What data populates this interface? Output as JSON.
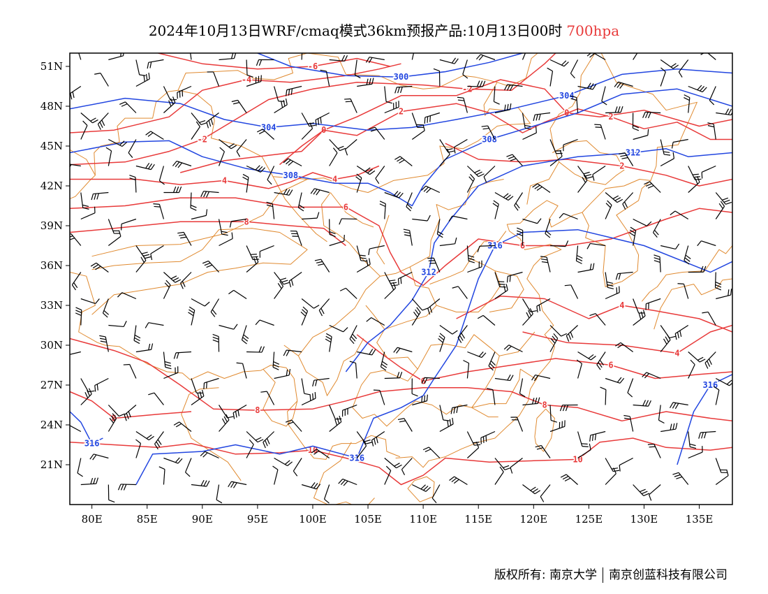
{
  "title": {
    "main": "2024年10月13日WRF/cmaq模式36km预报产品:10月13日00时",
    "level": "700hpa"
  },
  "colors": {
    "temperature": "#e83a3a",
    "height": "#2246e0",
    "border": "#e08a30",
    "wind": "#000000"
  },
  "map": {
    "lon_range": [
      78,
      138
    ],
    "lat_range": [
      18,
      52
    ],
    "lat_ticks": [
      "51N",
      "48N",
      "45N",
      "42N",
      "39N",
      "36N",
      "33N",
      "30N",
      "27N",
      "24N",
      "21N"
    ],
    "lat_values": [
      51,
      48,
      45,
      42,
      39,
      36,
      33,
      30,
      27,
      24,
      21
    ],
    "lon_ticks": [
      "80E",
      "85E",
      "90E",
      "95E",
      "100E",
      "105E",
      "110E",
      "115E",
      "120E",
      "125E",
      "130E",
      "135E"
    ],
    "lon_values": [
      80,
      85,
      90,
      95,
      100,
      105,
      110,
      115,
      120,
      125,
      130,
      135
    ],
    "height_contours": [
      {
        "label": "304",
        "points": [
          [
            78,
            47.8
          ],
          [
            83,
            48.6
          ],
          [
            88,
            48.2
          ],
          [
            92,
            47
          ],
          [
            96,
            46.4
          ],
          [
            100,
            46.7
          ],
          [
            105,
            46.2
          ],
          [
            109,
            46.4
          ],
          [
            113,
            47
          ],
          [
            118,
            47.8
          ],
          [
            123,
            48.8
          ],
          [
            128,
            50.4
          ],
          [
            133,
            50.8
          ],
          [
            138,
            50.5
          ]
        ]
      },
      {
        "label": "300",
        "points": [
          [
            95,
            52
          ],
          [
            98,
            51
          ],
          [
            103,
            50.3
          ],
          [
            108,
            50.2
          ],
          [
            112,
            50.6
          ],
          [
            116,
            51.3
          ],
          [
            119,
            52
          ]
        ]
      },
      {
        "label": "308",
        "points": [
          [
            78,
            44.5
          ],
          [
            83,
            45.3
          ],
          [
            87,
            45.4
          ],
          [
            90,
            44.2
          ],
          [
            94,
            43.3
          ],
          [
            98,
            42.8
          ],
          [
            102,
            42.2
          ],
          [
            105,
            42.2
          ],
          [
            107,
            41.5
          ],
          [
            109,
            40.5
          ],
          [
            110,
            42
          ],
          [
            112,
            44
          ],
          [
            116,
            45.5
          ],
          [
            120,
            46.5
          ],
          [
            124,
            47.5
          ],
          [
            128,
            48.9
          ],
          [
            133,
            49.3
          ],
          [
            138,
            48
          ]
        ]
      },
      {
        "label": "312",
        "points": [
          [
            103,
            28
          ],
          [
            105,
            30.2
          ],
          [
            107,
            31.5
          ],
          [
            109,
            33.4
          ],
          [
            110.5,
            35.5
          ],
          [
            111,
            37.7
          ],
          [
            112.5,
            39.5
          ],
          [
            115,
            42
          ],
          [
            119,
            43.5
          ],
          [
            124,
            44.2
          ],
          [
            129,
            44.5
          ],
          [
            132,
            44.8
          ],
          [
            134,
            44.2
          ],
          [
            138,
            44.5
          ]
        ]
      },
      {
        "label": "316",
        "points": [
          [
            84,
            19.5
          ],
          [
            85.5,
            21.8
          ],
          [
            90,
            22
          ],
          [
            93,
            22.5
          ],
          [
            97,
            21.8
          ],
          [
            100,
            22.4
          ],
          [
            104,
            21.5
          ],
          [
            105.5,
            24.5
          ],
          [
            108,
            25.3
          ],
          [
            110,
            26.2
          ],
          [
            111,
            27.5
          ],
          [
            113,
            30
          ],
          [
            114,
            32.5
          ],
          [
            115,
            35
          ],
          [
            116.5,
            37.5
          ],
          [
            119,
            38.5
          ],
          [
            124,
            38.7
          ],
          [
            130,
            37.5
          ],
          [
            136,
            35.5
          ],
          [
            138,
            36.3
          ]
        ]
      },
      {
        "label": "316",
        "points": [
          [
            133,
            21
          ],
          [
            134.5,
            25
          ],
          [
            136,
            27
          ],
          [
            138,
            27.8
          ]
        ]
      },
      {
        "label": "316",
        "points": [
          [
            78,
            25
          ],
          [
            79,
            24.2
          ],
          [
            80,
            22.6
          ],
          [
            81,
            23
          ]
        ]
      }
    ],
    "temp_contours": [
      {
        "label": "-6",
        "points": [
          [
            86,
            52
          ],
          [
            90,
            51.2
          ],
          [
            95,
            50.8
          ],
          [
            100,
            51
          ],
          [
            104,
            51.6
          ],
          [
            107,
            51
          ]
        ]
      },
      {
        "label": "-4",
        "points": [
          [
            78,
            46
          ],
          [
            82,
            46.2
          ],
          [
            87,
            47.2
          ],
          [
            90,
            49.2
          ],
          [
            94,
            50
          ],
          [
            98,
            49.8
          ],
          [
            103,
            50.3
          ],
          [
            106,
            50.8
          ],
          [
            108,
            51.2
          ]
        ]
      },
      {
        "label": "-2",
        "points": [
          [
            78,
            43.6
          ],
          [
            83,
            43.8
          ],
          [
            87,
            44.6
          ],
          [
            90,
            45.5
          ],
          [
            93,
            47
          ],
          [
            96,
            48.5
          ],
          [
            100,
            49.3
          ],
          [
            104,
            49.8
          ],
          [
            110,
            49.6
          ],
          [
            114,
            49.3
          ],
          [
            118,
            49.2
          ],
          [
            121,
            51.2
          ],
          [
            122,
            52
          ]
        ]
      },
      {
        "label": "0",
        "points": [
          [
            88,
            43
          ],
          [
            92,
            43.9
          ],
          [
            96,
            44.3
          ],
          [
            99,
            44.6
          ],
          [
            101,
            46.2
          ],
          [
            104,
            47.2
          ],
          [
            108,
            48.8
          ],
          [
            113,
            48.8
          ],
          [
            117,
            50
          ],
          [
            121,
            49.3
          ],
          [
            123,
            47.5
          ],
          [
            126,
            47.2
          ],
          [
            130,
            47.7
          ],
          [
            135,
            46.5
          ],
          [
            138,
            47
          ]
        ]
      },
      {
        "label": "2",
        "points": [
          [
            97,
            43.6
          ],
          [
            99,
            45
          ],
          [
            101,
            46.2
          ],
          [
            104,
            45.8
          ],
          [
            108,
            47.6
          ],
          [
            113,
            48.2
          ],
          [
            116,
            47.5
          ],
          [
            119,
            46
          ],
          [
            121,
            46.8
          ],
          [
            124,
            47.8
          ],
          [
            127,
            47.2
          ],
          [
            130,
            46.3
          ],
          [
            133,
            46.8
          ],
          [
            136,
            45.5
          ],
          [
            138,
            45.5
          ]
        ]
      },
      {
        "label": "2",
        "points": [
          [
            112,
            45.2
          ],
          [
            115,
            44
          ],
          [
            119,
            43.8
          ],
          [
            123,
            44
          ],
          [
            128,
            43.5
          ],
          [
            132,
            42.8
          ],
          [
            135,
            42
          ],
          [
            138,
            42.5
          ]
        ]
      },
      {
        "label": "4",
        "points": [
          [
            78,
            42.5
          ],
          [
            84,
            42.5
          ],
          [
            88,
            42.1
          ],
          [
            92,
            42.4
          ],
          [
            96,
            41.8
          ],
          [
            98,
            42.3
          ],
          [
            100,
            43
          ],
          [
            102,
            42.5
          ],
          [
            104,
            42.8
          ],
          [
            106,
            43.5
          ]
        ]
      },
      {
        "label": "6",
        "points": [
          [
            78,
            40.3
          ],
          [
            83,
            40.5
          ],
          [
            88,
            41.1
          ],
          [
            93,
            41.1
          ],
          [
            98,
            40.4
          ],
          [
            103,
            40.4
          ],
          [
            106,
            39
          ],
          [
            107,
            37
          ],
          [
            108,
            35.5
          ],
          [
            110,
            34.5
          ],
          [
            112,
            36
          ],
          [
            115,
            38
          ],
          [
            119,
            37.5
          ],
          [
            123,
            37.5
          ],
          [
            127,
            38
          ],
          [
            132,
            39.5
          ],
          [
            135,
            40.3
          ],
          [
            138,
            40
          ]
        ]
      },
      {
        "label": "8",
        "points": [
          [
            78,
            38.5
          ],
          [
            82,
            38.8
          ],
          [
            88,
            39.3
          ],
          [
            94,
            39.3
          ],
          [
            98,
            39
          ],
          [
            101,
            38.8
          ],
          [
            103,
            37.5
          ]
        ]
      },
      {
        "label": "4",
        "points": [
          [
            113,
            32
          ],
          [
            117,
            33.7
          ],
          [
            121,
            33.5
          ],
          [
            125,
            32
          ],
          [
            128,
            33
          ],
          [
            131,
            32.6
          ],
          [
            135,
            32
          ],
          [
            138,
            31
          ]
        ]
      },
      {
        "label": "4",
        "points": [
          [
            119,
            31
          ],
          [
            123,
            30.2
          ],
          [
            128,
            30
          ],
          [
            133,
            29.4
          ],
          [
            136,
            31
          ],
          [
            138,
            31.5
          ]
        ]
      },
      {
        "label": "6",
        "points": [
          [
            104,
            30.8
          ],
          [
            106,
            29.5
          ],
          [
            108,
            28.3
          ],
          [
            110,
            27.3
          ],
          [
            114,
            28
          ],
          [
            118,
            28.5
          ],
          [
            122,
            29
          ],
          [
            127,
            28.5
          ],
          [
            131,
            27.5
          ],
          [
            135,
            27.8
          ],
          [
            138,
            28
          ]
        ]
      },
      {
        "label": "8",
        "points": [
          [
            78,
            30.5
          ],
          [
            82,
            29.6
          ],
          [
            85,
            28.7
          ],
          [
            88,
            27
          ],
          [
            91,
            25.2
          ],
          [
            95,
            25.1
          ],
          [
            100,
            25.2
          ],
          [
            103,
            25.8
          ],
          [
            106,
            26.5
          ],
          [
            110,
            26.8
          ],
          [
            114,
            26.8
          ],
          [
            118,
            26.5
          ],
          [
            121,
            25.5
          ],
          [
            124,
            25.3
          ],
          [
            128,
            24.3
          ],
          [
            132,
            25
          ],
          [
            136,
            24.5
          ],
          [
            138,
            24.3
          ]
        ]
      },
      {
        "label": "8",
        "points": [
          [
            78,
            26.5
          ],
          [
            80,
            25.8
          ],
          [
            82,
            24.5
          ],
          [
            86,
            24.8
          ],
          [
            89,
            25
          ]
        ]
      },
      {
        "label": "10",
        "points": [
          [
            78,
            22.7
          ],
          [
            82,
            22.5
          ],
          [
            86,
            22.3
          ],
          [
            89,
            22.6
          ],
          [
            93,
            21.8
          ],
          [
            97,
            21.9
          ],
          [
            100,
            22.1
          ],
          [
            103,
            21.5
          ],
          [
            106,
            20.8
          ],
          [
            108,
            19.5
          ],
          [
            110,
            20.2
          ],
          [
            112,
            21.5
          ],
          [
            116,
            21.2
          ],
          [
            120,
            21.3
          ],
          [
            124,
            21.4
          ],
          [
            126,
            22.7
          ],
          [
            129,
            23
          ],
          [
            132,
            22.3
          ],
          [
            136,
            22.1
          ],
          [
            138,
            22.3
          ]
        ]
      }
    ]
  },
  "footer": {
    "copyright": "版权所有: 南京大学",
    "company": "南京创蓝科技有限公司"
  }
}
